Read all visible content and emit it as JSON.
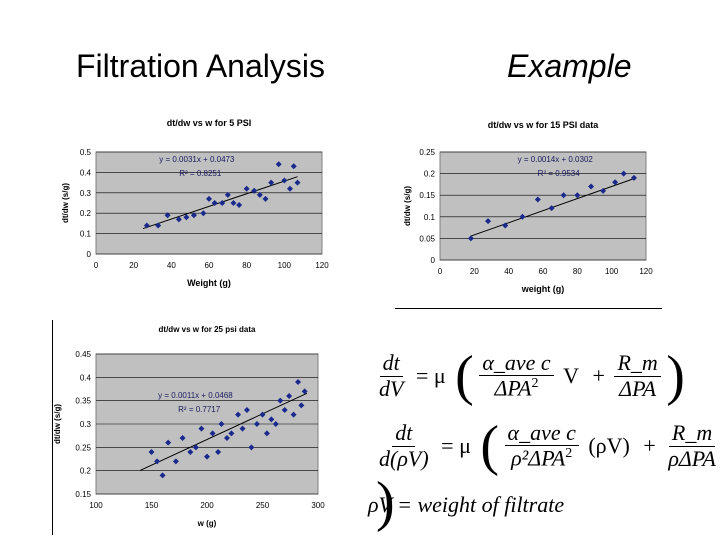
{
  "slide": {
    "title_left": "Filtration Analysis",
    "title_right": "Example"
  },
  "equations": {
    "eq1": {
      "lhs_num": "dt",
      "lhs_den": "dV",
      "mu": "= μ",
      "f1_num": "α_ave c",
      "f1_den": "ΔPA",
      "f1_exp": "2",
      "var": "V",
      "plus": "+",
      "f2_num": "R_m",
      "f2_den": "ΔPA"
    },
    "eq2": {
      "lhs_num": "dt",
      "lhs_den": "d(ρV)",
      "mu": "= μ",
      "f1_num": "α_ave c",
      "f1_den": "ρ²ΔPA",
      "f1_exp": "2",
      "var": "(ρV)",
      "plus": "+",
      "f2_num": "R_m",
      "f2_den": "ρΔPA"
    },
    "def": "ρV = weight of  filtrate"
  },
  "chart_data": [
    {
      "type": "scatter",
      "title": "dt/dw vs w for 5 PSI",
      "xlabel": "Weight (g)",
      "ylabel": "dt/dw (s/g)",
      "xlim": [
        0,
        120
      ],
      "ylim": [
        0,
        0.5
      ],
      "xticks": [
        "0",
        "20",
        "40",
        "60",
        "80",
        "100",
        "120"
      ],
      "yticks": [
        "0",
        "0.1",
        "0.2",
        "0.3",
        "0.4",
        "0.5"
      ],
      "equation": "y = 0.0031x + 0.0473",
      "r2": "R² = 0.8251",
      "trend": {
        "slope": 0.0031,
        "intercept": 0.0473,
        "x_range": [
          25,
          107
        ]
      },
      "grid": "horizontal",
      "colors": {
        "marker": "#1a2a8c",
        "plot_bg": "#c0c0c0"
      },
      "x": [
        27,
        33,
        38,
        44,
        48,
        52,
        57,
        60,
        63,
        67,
        70,
        73,
        76,
        80,
        84,
        87,
        90,
        93,
        97,
        100,
        103,
        105,
        107
      ],
      "y": [
        0.14,
        0.14,
        0.19,
        0.17,
        0.18,
        0.19,
        0.2,
        0.27,
        0.25,
        0.25,
        0.29,
        0.25,
        0.24,
        0.32,
        0.31,
        0.29,
        0.27,
        0.35,
        0.44,
        0.36,
        0.32,
        0.43,
        0.35
      ]
    },
    {
      "type": "scatter",
      "title": "dt/dw vs w for 15 PSI data",
      "xlabel": "weight (g)",
      "ylabel": "dt/dw (s/g)",
      "xlim": [
        0,
        120
      ],
      "ylim": [
        0,
        0.25
      ],
      "xticks": [
        "0",
        "20",
        "40",
        "60",
        "80",
        "100",
        "120"
      ],
      "yticks": [
        "0",
        "0.05",
        "0.1",
        "0.15",
        "0.2",
        "0.25"
      ],
      "equation": "y = 0.0014x + 0.0302",
      "r2": "R² = 0.9534",
      "trend": {
        "slope": 0.0014,
        "intercept": 0.0302,
        "x_range": [
          18,
          113
        ]
      },
      "grid": "horizontal",
      "colors": {
        "marker": "#1a2a8c",
        "plot_bg": "#c0c0c0"
      },
      "x": [
        18,
        28,
        38,
        48,
        57,
        65,
        72,
        80,
        88,
        95,
        102,
        107,
        113
      ],
      "y": [
        0.05,
        0.09,
        0.08,
        0.1,
        0.14,
        0.12,
        0.15,
        0.15,
        0.17,
        0.16,
        0.18,
        0.2,
        0.19
      ]
    },
    {
      "type": "scatter",
      "title": "dt/dw vs w for 25 psi data",
      "xlabel": "w (g)",
      "ylabel": "dt/dw (s/g)",
      "xlim": [
        100,
        300
      ],
      "ylim": [
        0.15,
        0.45
      ],
      "xticks": [
        "100",
        "150",
        "200",
        "250",
        "300"
      ],
      "yticks": [
        "0.15",
        "0.2",
        "0.25",
        "0.3",
        "0.35",
        "0.4",
        "0.45"
      ],
      "equation": "y = 0.0011x + 0.0468",
      "r2": "R² = 0.7717",
      "trend": {
        "slope": 0.0011,
        "intercept": 0.0468,
        "x_range": [
          140,
          290
        ]
      },
      "grid": "horizontal",
      "colors": {
        "marker": "#1a2a8c",
        "plot_bg": "#c0c0c0"
      },
      "x": [
        150,
        155,
        160,
        165,
        172,
        178,
        185,
        190,
        195,
        200,
        205,
        210,
        213,
        218,
        222,
        228,
        232,
        236,
        240,
        245,
        250,
        254,
        258,
        262,
        266,
        270,
        274,
        278,
        282,
        285,
        288
      ],
      "y": [
        0.24,
        0.22,
        0.19,
        0.26,
        0.22,
        0.27,
        0.24,
        0.25,
        0.29,
        0.23,
        0.28,
        0.24,
        0.3,
        0.27,
        0.28,
        0.32,
        0.29,
        0.33,
        0.25,
        0.3,
        0.32,
        0.28,
        0.31,
        0.3,
        0.35,
        0.33,
        0.36,
        0.32,
        0.39,
        0.34,
        0.37
      ]
    }
  ]
}
